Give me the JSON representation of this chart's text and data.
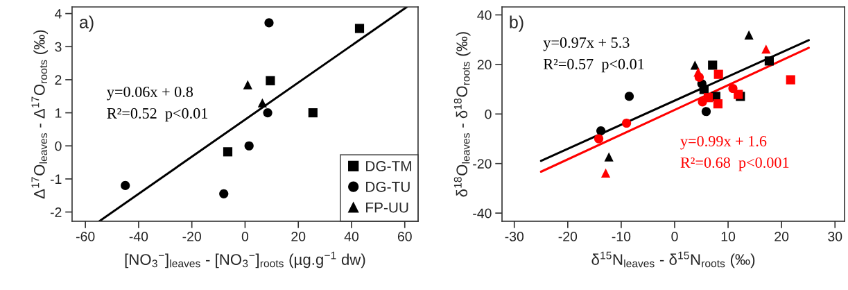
{
  "chart_data": [
    {
      "type": "scatter",
      "xlabel": "[NO$_{3}$$^{−}$]$_{leaves}$ - [NO$_{3}$$^{−}$]$_{roots}$ (µg.g$^{−1}$ dw)",
      "ylabel": "Δ$^{17}$O$_{leaves}$ - Δ$^{17}$O$_{roots}$ (‰)",
      "xlim": [
        -65,
        65
      ],
      "ylim": [
        -2.28,
        4.2
      ],
      "xticks": [
        -60,
        -40,
        -20,
        0,
        20,
        40,
        60
      ],
      "yticks": [
        -2,
        -1,
        0,
        1,
        2,
        3,
        4
      ],
      "grid": false,
      "legend": "bottom right",
      "annotations": [
        "a)",
        "y=0.06x + 0.8",
        "R²=0.52  p<0.01"
      ],
      "series": [
        {
          "name": "DG-TM",
          "color": "#000000",
          "marker": "square",
          "x": [
            43,
            9.5,
            25.5,
            -6.5
          ],
          "values": [
            3.55,
            1.97,
            1.0,
            -0.18
          ]
        },
        {
          "name": "DG-TU",
          "color": "#000000",
          "marker": "circle",
          "x": [
            9,
            8.5,
            1.5,
            -45,
            -8
          ],
          "values": [
            3.72,
            1.0,
            0.0,
            -1.2,
            -1.45
          ]
        },
        {
          "name": "FP-UU",
          "color": "#000000",
          "marker": "triangle",
          "x": [
            1,
            6.5
          ],
          "values": [
            1.85,
            1.3
          ]
        },
        {
          "type": "line",
          "color": "#000000",
          "marker": "none",
          "x": [
            -54.8,
            60.8
          ],
          "values": [
            -2.28,
            4.2
          ]
        }
      ]
    },
    {
      "type": "scatter",
      "xlabel": "δ$^{15}$N$_{leaves}$ - δ$^{15}$N$_{roots}$ (‰)",
      "ylabel": "δ$^{18}$O$_{leaves}$ - δ$^{18}$O$_{roots}$ (‰)",
      "xlim": [
        -32.3,
        31.8
      ],
      "ylim": [
        -43.3,
        43.2
      ],
      "xticks": [
        -30,
        -20,
        -10,
        0,
        10,
        20,
        30
      ],
      "yticks": [
        -40,
        -20,
        0,
        20,
        40
      ],
      "grid": false,
      "legend": false,
      "annotations": [
        "b)",
        "y=0.97x + 5.3",
        "R²=0.57  p<0.01",
        "y=0.99x + 1.6",
        "R²=0.68  p<0.001"
      ],
      "series": [
        {
          "color": "#000000",
          "marker": "square",
          "x": [
            7.1,
            17.7,
            5.5,
            7.7,
            12.3
          ],
          "values": [
            19.7,
            21.4,
            9.9,
            7.1,
            7.1
          ]
        },
        {
          "color": "#000000",
          "marker": "circle",
          "x": [
            -8.5,
            -13.8,
            5.1,
            5.9
          ],
          "values": [
            7.1,
            -6.8,
            12.2,
            1.0
          ]
        },
        {
          "color": "#000000",
          "marker": "triangle",
          "x": [
            13.9,
            3.8,
            -12.3
          ],
          "values": [
            31.9,
            19.7,
            -17.3
          ]
        },
        {
          "color": "#ff0000",
          "marker": "square",
          "x": [
            8.2,
            21.7,
            8.1,
            11.9,
            6.3
          ],
          "values": [
            16.0,
            13.8,
            4.1,
            7.9,
            6.6
          ]
        },
        {
          "color": "#ff0000",
          "marker": "circle",
          "x": [
            4.6,
            10.9,
            5.2,
            -9.0,
            -14.2
          ],
          "values": [
            14.8,
            10.3,
            4.9,
            -3.7,
            -10.0
          ]
        },
        {
          "color": "#ff0000",
          "marker": "triangle",
          "x": [
            17.1,
            4.4,
            -12.9
          ],
          "values": [
            26.2,
            16.9,
            -23.8
          ]
        },
        {
          "type": "line",
          "color": "#000000",
          "marker": "none",
          "x": [
            -25.0,
            25.1
          ],
          "values": [
            -18.9,
            29.8
          ]
        },
        {
          "type": "line",
          "color": "#ff0000",
          "marker": "none",
          "x": [
            -25.0,
            25.1
          ],
          "values": [
            -23.3,
            26.7
          ]
        }
      ]
    }
  ]
}
